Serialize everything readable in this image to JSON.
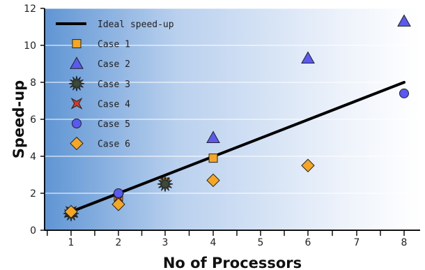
{
  "chart_data": {
    "type": "scatter",
    "title": "",
    "xlabel": "No of Processors",
    "ylabel": "Speed-up",
    "xlim": [
      0.5,
      8.5
    ],
    "ylim": [
      0,
      12
    ],
    "x_ticks": [
      1,
      2,
      3,
      4,
      5,
      6,
      7,
      8
    ],
    "y_ticks": [
      0,
      2,
      4,
      6,
      8,
      10,
      12
    ],
    "grid": "horizontal",
    "legend_position": "top-left",
    "series": [
      {
        "name": "Ideal speed-up",
        "marker": "line",
        "color": "#000000",
        "points": [
          [
            1,
            1
          ],
          [
            8,
            8
          ]
        ]
      },
      {
        "name": "Case 1",
        "marker": "square",
        "color": "#f5a623",
        "points": [
          [
            1,
            1
          ],
          [
            2,
            1.8
          ],
          [
            3,
            2.6
          ],
          [
            4,
            3.9
          ]
        ]
      },
      {
        "name": "Case 2",
        "marker": "triangle",
        "color": "#5a5af0",
        "points": [
          [
            1,
            1
          ],
          [
            4,
            5
          ],
          [
            6,
            9.3
          ],
          [
            8,
            11.3
          ]
        ]
      },
      {
        "name": "Case 3",
        "marker": "starburst",
        "color": "#3c4a3c",
        "points": [
          [
            1,
            0.9
          ],
          [
            3,
            2.5
          ]
        ]
      },
      {
        "name": "Case 4",
        "marker": "bowtie",
        "color": "#d63a2a",
        "points": [
          [
            1,
            1
          ],
          [
            2,
            1.7
          ]
        ]
      },
      {
        "name": "Case 5",
        "marker": "circle",
        "color": "#5a5af0",
        "points": [
          [
            1,
            1
          ],
          [
            2,
            2
          ],
          [
            8,
            7.4
          ]
        ]
      },
      {
        "name": "Case 6",
        "marker": "diamond",
        "color": "#f5a623",
        "points": [
          [
            1,
            1
          ],
          [
            2,
            1.4
          ],
          [
            4,
            2.7
          ],
          [
            6,
            3.5
          ]
        ]
      }
    ]
  }
}
